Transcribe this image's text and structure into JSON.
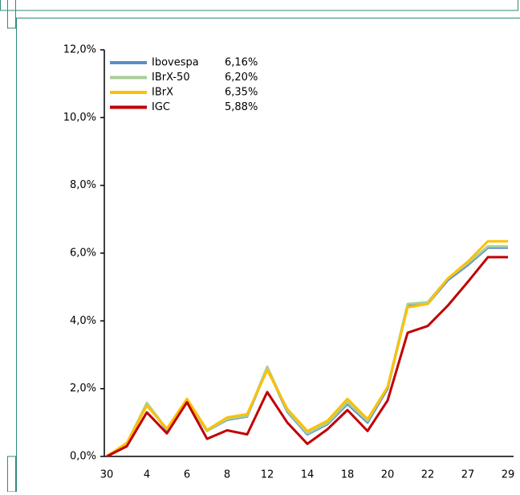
{
  "chart_data": {
    "type": "line",
    "categories": [
      "30",
      null,
      "4",
      null,
      "6",
      null,
      "8",
      null,
      "12",
      null,
      "14",
      null,
      "18",
      null,
      "20",
      null,
      "22",
      null,
      "27",
      null,
      "29"
    ],
    "series": [
      {
        "name": "Ibovespa",
        "color": "#5b8fc6",
        "final_label": "6,16%",
        "values": [
          0,
          0.38,
          1.55,
          0.78,
          1.6,
          0.75,
          1.08,
          1.18,
          2.6,
          1.32,
          0.65,
          0.95,
          1.55,
          1.0,
          2.0,
          4.45,
          4.5,
          5.2,
          5.65,
          6.16,
          6.16
        ]
      },
      {
        "name": "IBrX-50",
        "color": "#a9cf9b",
        "final_label": "6,20%",
        "values": [
          0,
          0.38,
          1.58,
          0.8,
          1.62,
          0.75,
          1.1,
          1.2,
          2.65,
          1.35,
          0.68,
          0.98,
          1.6,
          1.05,
          2.05,
          4.5,
          4.55,
          5.25,
          5.7,
          6.2,
          6.2
        ]
      },
      {
        "name": "IBrX",
        "color": "#ffc000",
        "final_label": "6,35%",
        "values": [
          0,
          0.4,
          1.5,
          0.82,
          1.7,
          0.78,
          1.15,
          1.25,
          2.55,
          1.4,
          0.75,
          1.05,
          1.7,
          1.1,
          2.05,
          4.4,
          4.5,
          5.25,
          5.75,
          6.35,
          6.35
        ]
      },
      {
        "name": "IGC",
        "color": "#c00000",
        "final_label": "5,88%",
        "values": [
          0,
          0.3,
          1.3,
          0.68,
          1.6,
          0.52,
          0.77,
          0.65,
          1.9,
          1.0,
          0.37,
          0.8,
          1.37,
          0.75,
          1.65,
          3.65,
          3.85,
          4.45,
          5.15,
          5.88,
          5.88
        ]
      }
    ],
    "ylim": [
      0,
      12
    ],
    "yticks": [
      {
        "value": 0,
        "label": "0,0%"
      },
      {
        "value": 2,
        "label": "2,0%"
      },
      {
        "value": 4,
        "label": "4,0%"
      },
      {
        "value": 6,
        "label": "6,0%"
      },
      {
        "value": 8,
        "label": "8,0%"
      },
      {
        "value": 10,
        "label": "10,0%"
      },
      {
        "value": 12,
        "label": "12,0%"
      }
    ]
  }
}
